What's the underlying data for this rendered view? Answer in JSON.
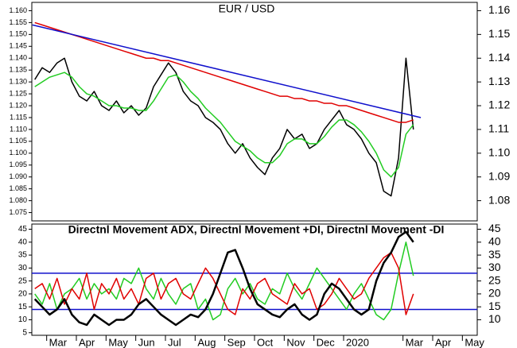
{
  "chart_data": [
    {
      "type": "line",
      "title": "EUR / USD",
      "xlim": [
        0.5,
        15.5
      ],
      "ylim": [
        1.0715,
        1.1635
      ],
      "yticks": [
        {
          "value": 1.16,
          "label": "1.160"
        },
        {
          "value": 1.155,
          "label": "1.155"
        },
        {
          "value": 1.15,
          "label": "1.150"
        },
        {
          "value": 1.145,
          "label": "1.145"
        },
        {
          "value": 1.14,
          "label": "1.140"
        },
        {
          "value": 1.135,
          "label": "1.135"
        },
        {
          "value": 1.13,
          "label": "1.130"
        },
        {
          "value": 1.125,
          "label": "1.125"
        },
        {
          "value": 1.12,
          "label": "1.120"
        },
        {
          "value": 1.115,
          "label": "1.115"
        },
        {
          "value": 1.11,
          "label": "1.110"
        },
        {
          "value": 1.105,
          "label": "1.105"
        },
        {
          "value": 1.1,
          "label": "1.100"
        },
        {
          "value": 1.095,
          "label": "1.095"
        },
        {
          "value": 1.09,
          "label": "1.090"
        },
        {
          "value": 1.085,
          "label": "1.085"
        },
        {
          "value": 1.08,
          "label": "1.080"
        },
        {
          "value": 1.075,
          "label": "1.075"
        }
      ],
      "y2lim": [
        1.0715,
        1.1635
      ],
      "y2ticks": [
        1.16,
        1.15,
        1.14,
        1.13,
        1.12,
        1.11,
        {
          "value": 1.1,
          "label": "1.10"
        },
        1.09,
        1.08
      ],
      "series": [
        {
          "color": "#000000",
          "x": [
            0.6,
            0.85,
            1.1,
            1.35,
            1.6,
            1.85,
            2.1,
            2.35,
            2.6,
            2.85,
            3.1,
            3.35,
            3.6,
            3.85,
            4.1,
            4.35,
            4.6,
            4.85,
            5.1,
            5.35,
            5.6,
            5.85,
            6.1,
            6.35,
            6.6,
            6.85,
            7.1,
            7.35,
            7.6,
            7.85,
            8.1,
            8.35,
            8.6,
            8.85,
            9.1,
            9.35,
            9.6,
            9.85,
            10.1,
            10.35,
            10.6,
            10.85,
            11.1,
            11.35,
            11.6,
            11.85,
            12.1,
            12.35,
            12.6,
            12.85,
            13.1,
            13.35
          ],
          "values": [
            1.131,
            1.136,
            1.134,
            1.138,
            1.14,
            1.13,
            1.124,
            1.122,
            1.126,
            1.12,
            1.118,
            1.122,
            1.117,
            1.12,
            1.116,
            1.119,
            1.128,
            1.133,
            1.138,
            1.134,
            1.126,
            1.122,
            1.12,
            1.115,
            1.113,
            1.11,
            1.104,
            1.1,
            1.104,
            1.098,
            1.094,
            1.091,
            1.098,
            1.102,
            1.11,
            1.106,
            1.108,
            1.102,
            1.104,
            1.11,
            1.114,
            1.118,
            1.112,
            1.11,
            1.106,
            1.1,
            1.096,
            1.084,
            1.082,
            1.098,
            1.14,
            1.11
          ]
        },
        {
          "color": "#e00000",
          "x": [
            0.6,
            0.85,
            1.1,
            1.35,
            1.6,
            1.85,
            2.1,
            2.35,
            2.6,
            2.85,
            3.1,
            3.35,
            3.6,
            3.85,
            4.1,
            4.35,
            4.6,
            4.85,
            5.1,
            5.35,
            5.6,
            5.85,
            6.1,
            6.35,
            6.6,
            6.85,
            7.1,
            7.35,
            7.6,
            7.85,
            8.1,
            8.35,
            8.6,
            8.85,
            9.1,
            9.35,
            9.6,
            9.85,
            10.1,
            10.35,
            10.6,
            10.85,
            11.1,
            11.35,
            11.6,
            11.85,
            12.1,
            12.35,
            12.6,
            12.85,
            13.1,
            13.35
          ],
          "values": [
            1.155,
            1.154,
            1.153,
            1.152,
            1.151,
            1.15,
            1.149,
            1.148,
            1.147,
            1.146,
            1.145,
            1.144,
            1.143,
            1.142,
            1.141,
            1.14,
            1.14,
            1.139,
            1.139,
            1.138,
            1.137,
            1.136,
            1.135,
            1.134,
            1.133,
            1.132,
            1.131,
            1.13,
            1.129,
            1.128,
            1.127,
            1.126,
            1.125,
            1.124,
            1.124,
            1.123,
            1.123,
            1.122,
            1.122,
            1.121,
            1.121,
            1.12,
            1.12,
            1.119,
            1.118,
            1.117,
            1.116,
            1.115,
            1.114,
            1.113,
            1.113,
            1.114
          ]
        },
        {
          "color": "#22cc22",
          "x": [
            0.6,
            0.85,
            1.1,
            1.35,
            1.6,
            1.85,
            2.1,
            2.35,
            2.6,
            2.85,
            3.1,
            3.35,
            3.6,
            3.85,
            4.1,
            4.35,
            4.6,
            4.85,
            5.1,
            5.35,
            5.6,
            5.85,
            6.1,
            6.35,
            6.6,
            6.85,
            7.1,
            7.35,
            7.6,
            7.85,
            8.1,
            8.35,
            8.6,
            8.85,
            9.1,
            9.35,
            9.6,
            9.85,
            10.1,
            10.35,
            10.6,
            10.85,
            11.1,
            11.35,
            11.6,
            11.85,
            12.1,
            12.35,
            12.6,
            12.85,
            13.1,
            13.35
          ],
          "values": [
            1.128,
            1.13,
            1.132,
            1.133,
            1.134,
            1.132,
            1.128,
            1.125,
            1.124,
            1.122,
            1.12,
            1.12,
            1.119,
            1.119,
            1.118,
            1.118,
            1.122,
            1.127,
            1.132,
            1.133,
            1.13,
            1.126,
            1.123,
            1.119,
            1.116,
            1.113,
            1.109,
            1.105,
            1.103,
            1.101,
            1.098,
            1.096,
            1.096,
            1.099,
            1.104,
            1.106,
            1.106,
            1.104,
            1.104,
            1.107,
            1.111,
            1.114,
            1.114,
            1.112,
            1.109,
            1.105,
            1.1,
            1.093,
            1.09,
            1.094,
            1.108,
            1.112
          ]
        },
        {
          "color": "#1010cc",
          "x": [
            0.52,
            13.6
          ],
          "values": [
            1.154,
            1.115
          ]
        }
      ]
    },
    {
      "type": "line",
      "title": "Directnl Movement ADX, Directnl Movement +DI, Directnl Movement -DI",
      "xlim": [
        0.5,
        15.5
      ],
      "ylim": [
        4,
        47
      ],
      "yticks": [
        5,
        10,
        15,
        20,
        25,
        30,
        35,
        40,
        45
      ],
      "y2lim": [
        4,
        47
      ],
      "y2ticks": [
        10,
        15,
        20,
        25,
        30,
        35,
        40,
        45
      ],
      "hlines": [
        28,
        14
      ],
      "hline_color": "#1010cc",
      "xticks": [
        {
          "value": 1,
          "label": "Mar"
        },
        {
          "value": 2,
          "label": "Apr"
        },
        {
          "value": 3,
          "label": "May"
        },
        {
          "value": 4,
          "label": "Jun"
        },
        {
          "value": 5,
          "label": "Jul"
        },
        {
          "value": 6,
          "label": "Aug"
        },
        {
          "value": 7,
          "label": "Sep"
        },
        {
          "value": 8,
          "label": "Oct"
        },
        {
          "value": 9,
          "label": "Nov"
        },
        {
          "value": 10,
          "label": "Dec"
        },
        {
          "value": 11,
          "label": "2020"
        },
        {
          "value": 13,
          "label": "Mar"
        },
        {
          "value": 14,
          "label": "Apr"
        },
        {
          "value": 15,
          "label": "May"
        }
      ],
      "series": [
        {
          "color": "#22cc22",
          "x": [
            0.6,
            0.85,
            1.1,
            1.35,
            1.6,
            1.85,
            2.1,
            2.35,
            2.6,
            2.85,
            3.1,
            3.35,
            3.6,
            3.85,
            4.1,
            4.35,
            4.6,
            4.85,
            5.1,
            5.35,
            5.6,
            5.85,
            6.1,
            6.35,
            6.6,
            6.85,
            7.1,
            7.35,
            7.6,
            7.85,
            8.1,
            8.35,
            8.6,
            8.85,
            9.1,
            9.35,
            9.6,
            9.85,
            10.1,
            10.35,
            10.6,
            10.85,
            11.1,
            11.35,
            11.6,
            11.85,
            12.1,
            12.35,
            12.6,
            12.85,
            13.1,
            13.35
          ],
          "values": [
            20,
            16,
            24,
            14,
            20,
            22,
            26,
            18,
            24,
            20,
            22,
            18,
            26,
            24,
            30,
            22,
            18,
            26,
            20,
            16,
            22,
            24,
            14,
            18,
            10,
            12,
            22,
            26,
            20,
            24,
            18,
            16,
            22,
            20,
            28,
            22,
            18,
            24,
            30,
            26,
            22,
            18,
            14,
            20,
            24,
            18,
            12,
            10,
            14,
            28,
            40,
            27
          ]
        },
        {
          "color": "#e00000",
          "x": [
            0.6,
            0.85,
            1.1,
            1.35,
            1.6,
            1.85,
            2.1,
            2.35,
            2.6,
            2.85,
            3.1,
            3.35,
            3.6,
            3.85,
            4.1,
            4.35,
            4.6,
            4.85,
            5.1,
            5.35,
            5.6,
            5.85,
            6.1,
            6.35,
            6.6,
            6.85,
            7.1,
            7.35,
            7.6,
            7.85,
            8.1,
            8.35,
            8.6,
            8.85,
            9.1,
            9.35,
            9.6,
            9.85,
            10.1,
            10.35,
            10.6,
            10.85,
            11.1,
            11.35,
            11.6,
            11.85,
            12.1,
            12.35,
            12.6,
            12.85,
            13.1,
            13.35
          ],
          "values": [
            22,
            24,
            18,
            26,
            16,
            22,
            18,
            28,
            14,
            24,
            20,
            26,
            18,
            22,
            16,
            26,
            28,
            18,
            24,
            26,
            20,
            18,
            24,
            30,
            26,
            20,
            14,
            12,
            22,
            18,
            24,
            26,
            20,
            18,
            16,
            24,
            20,
            22,
            14,
            16,
            20,
            26,
            22,
            18,
            20,
            26,
            30,
            34,
            36,
            30,
            12,
            20
          ]
        },
        {
          "color": "#000000",
          "width": 2.5,
          "x": [
            0.6,
            0.85,
            1.1,
            1.35,
            1.6,
            1.85,
            2.1,
            2.35,
            2.6,
            2.85,
            3.1,
            3.35,
            3.6,
            3.85,
            4.1,
            4.35,
            4.6,
            4.85,
            5.1,
            5.35,
            5.6,
            5.85,
            6.1,
            6.35,
            6.6,
            6.85,
            7.1,
            7.35,
            7.6,
            7.85,
            8.1,
            8.35,
            8.6,
            8.85,
            9.1,
            9.35,
            9.6,
            9.85,
            10.1,
            10.35,
            10.6,
            10.85,
            11.1,
            11.35,
            11.6,
            11.85,
            12.1,
            12.35,
            12.6,
            12.85,
            13.1,
            13.35
          ],
          "values": [
            18,
            15,
            12,
            14,
            18,
            12,
            9,
            8,
            12,
            10,
            8,
            10,
            10,
            12,
            16,
            18,
            15,
            12,
            10,
            8,
            10,
            12,
            11,
            14,
            20,
            28,
            36,
            37,
            30,
            22,
            16,
            14,
            12,
            11,
            14,
            16,
            12,
            10,
            12,
            20,
            24,
            22,
            18,
            14,
            12,
            14,
            25,
            32,
            36,
            42,
            44,
            40
          ]
        }
      ]
    }
  ]
}
